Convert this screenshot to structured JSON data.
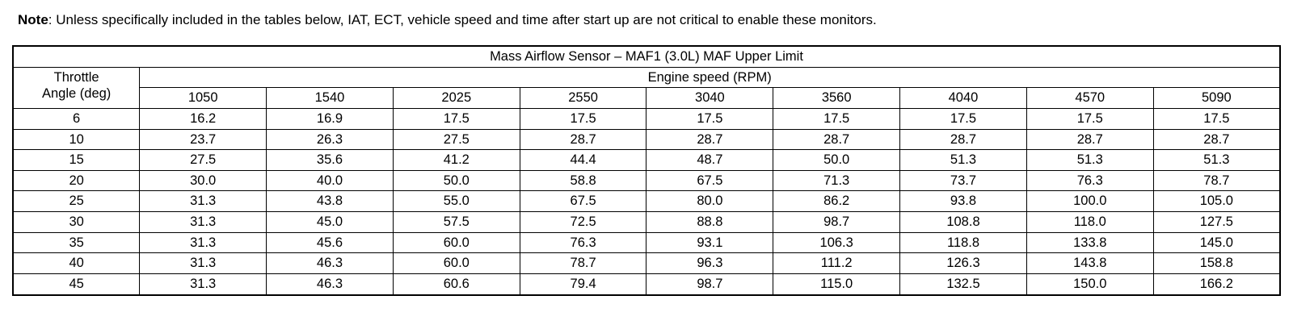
{
  "note": {
    "label": "Note",
    "text": ": Unless specifically included in the tables below, IAT, ECT, vehicle speed and time after start up are not critical to enable these monitors."
  },
  "table": {
    "title": "Mass Airflow Sensor – MAF1 (3.0L) MAF Upper Limit",
    "row_header": "Throttle\nAngle (deg)",
    "col_group_header": "Engine speed (RPM)",
    "rpm_columns": [
      "1050",
      "1540",
      "2025",
      "2550",
      "3040",
      "3560",
      "4040",
      "4570",
      "5090"
    ],
    "rows": [
      {
        "throttle_angle": "6",
        "values": [
          "16.2",
          "16.9",
          "17.5",
          "17.5",
          "17.5",
          "17.5",
          "17.5",
          "17.5",
          "17.5"
        ]
      },
      {
        "throttle_angle": "10",
        "values": [
          "23.7",
          "26.3",
          "27.5",
          "28.7",
          "28.7",
          "28.7",
          "28.7",
          "28.7",
          "28.7"
        ]
      },
      {
        "throttle_angle": "15",
        "values": [
          "27.5",
          "35.6",
          "41.2",
          "44.4",
          "48.7",
          "50.0",
          "51.3",
          "51.3",
          "51.3"
        ]
      },
      {
        "throttle_angle": "20",
        "values": [
          "30.0",
          "40.0",
          "50.0",
          "58.8",
          "67.5",
          "71.3",
          "73.7",
          "76.3",
          "78.7"
        ]
      },
      {
        "throttle_angle": "25",
        "values": [
          "31.3",
          "43.8",
          "55.0",
          "67.5",
          "80.0",
          "86.2",
          "93.8",
          "100.0",
          "105.0"
        ]
      },
      {
        "throttle_angle": "30",
        "values": [
          "31.3",
          "45.0",
          "57.5",
          "72.5",
          "88.8",
          "98.7",
          "108.8",
          "118.0",
          "127.5"
        ]
      },
      {
        "throttle_angle": "35",
        "values": [
          "31.3",
          "45.6",
          "60.0",
          "76.3",
          "93.1",
          "106.3",
          "118.8",
          "133.8",
          "145.0"
        ]
      },
      {
        "throttle_angle": "40",
        "values": [
          "31.3",
          "46.3",
          "60.0",
          "78.7",
          "96.3",
          "111.2",
          "126.3",
          "143.8",
          "158.8"
        ]
      },
      {
        "throttle_angle": "45",
        "values": [
          "31.3",
          "46.3",
          "60.6",
          "79.4",
          "98.7",
          "115.0",
          "132.5",
          "150.0",
          "166.2"
        ]
      }
    ]
  }
}
